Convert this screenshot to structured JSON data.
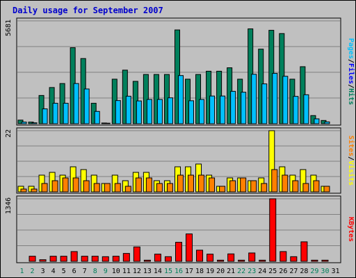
{
  "chart_data": {
    "type": "bar",
    "title": "Daily usage for September 2007",
    "x": [
      1,
      2,
      3,
      4,
      5,
      6,
      7,
      8,
      9,
      10,
      11,
      12,
      13,
      14,
      15,
      16,
      17,
      18,
      19,
      20,
      21,
      22,
      23,
      24,
      25,
      26,
      27,
      28,
      29,
      30,
      31
    ],
    "weekend_days": [
      1,
      2,
      8,
      9,
      15,
      16,
      22,
      23,
      29,
      30
    ],
    "colors": {
      "background": "#c0c0c0",
      "grid": "#808080",
      "hits": "#00805c",
      "files": "#0000ff",
      "pages": "#00c0ff",
      "visits": "#ffff00",
      "sites": "#ff8000",
      "kbytes": "#ff0000",
      "weekday_label": "#000000",
      "weekend_label": "#00805c"
    },
    "panels": [
      {
        "name": "hits-files-pages",
        "ymax_label": "5681",
        "ymax": 5681,
        "legend": [
          "Pages",
          "Files",
          "Hits"
        ],
        "series": [
          {
            "name": "Hits",
            "values": [
              200,
              90,
              1560,
              2000,
              2220,
              4200,
              3600,
              1130,
              40,
              2460,
              2960,
              2340,
              2720,
              2720,
              2720,
              5180,
              2460,
              2720,
              2900,
              2900,
              3090,
              2460,
              5240,
              4120,
              5160,
              4980,
              2460,
              3150,
              450,
              180,
              0
            ]
          },
          {
            "name": "Pages",
            "values": [
              90,
              50,
              820,
              1130,
              1130,
              2220,
              1920,
              680,
              30,
              1280,
              1520,
              1260,
              1340,
              1340,
              1430,
              2660,
              1270,
              1340,
              1530,
              1530,
              1790,
              1740,
              2730,
              2200,
              2780,
              2620,
              1510,
              1600,
              270,
              100,
              0
            ]
          }
        ]
      },
      {
        "name": "visits-sites",
        "ymax_label": "22",
        "ymax": 22,
        "legend": [
          "Sites",
          "Visits"
        ],
        "series": [
          {
            "name": "Visits",
            "values": [
              2,
              2,
              6,
              7,
              6,
              9,
              8,
              6,
              3,
              6,
              4,
              7,
              7,
              4,
              4,
              9,
              9,
              10,
              6,
              2,
              5,
              5,
              4,
              5,
              22,
              9,
              6,
              8,
              6,
              2,
              0
            ]
          },
          {
            "name": "Sites",
            "values": [
              1,
              1,
              3,
              4,
              5,
              5,
              4,
              3,
              3,
              3,
              2,
              5,
              5,
              3,
              3,
              6,
              6,
              6,
              5,
              2,
              4,
              5,
              4,
              3,
              8,
              6,
              4,
              3,
              4,
              2,
              0
            ]
          }
        ]
      },
      {
        "name": "kbytes",
        "ymax_label": "1346",
        "ymax": 1346,
        "legend": [
          "KBytes"
        ],
        "series": [
          {
            "name": "KBytes",
            "values": [
              0,
              110,
              35,
              110,
              110,
              210,
              110,
              110,
              100,
              110,
              170,
              310,
              25,
              155,
              100,
              410,
              590,
              240,
              155,
              25,
              160,
              25,
              180,
              25,
              1346,
              210,
              100,
              420,
              25,
              25,
              0
            ]
          }
        ]
      }
    ]
  }
}
